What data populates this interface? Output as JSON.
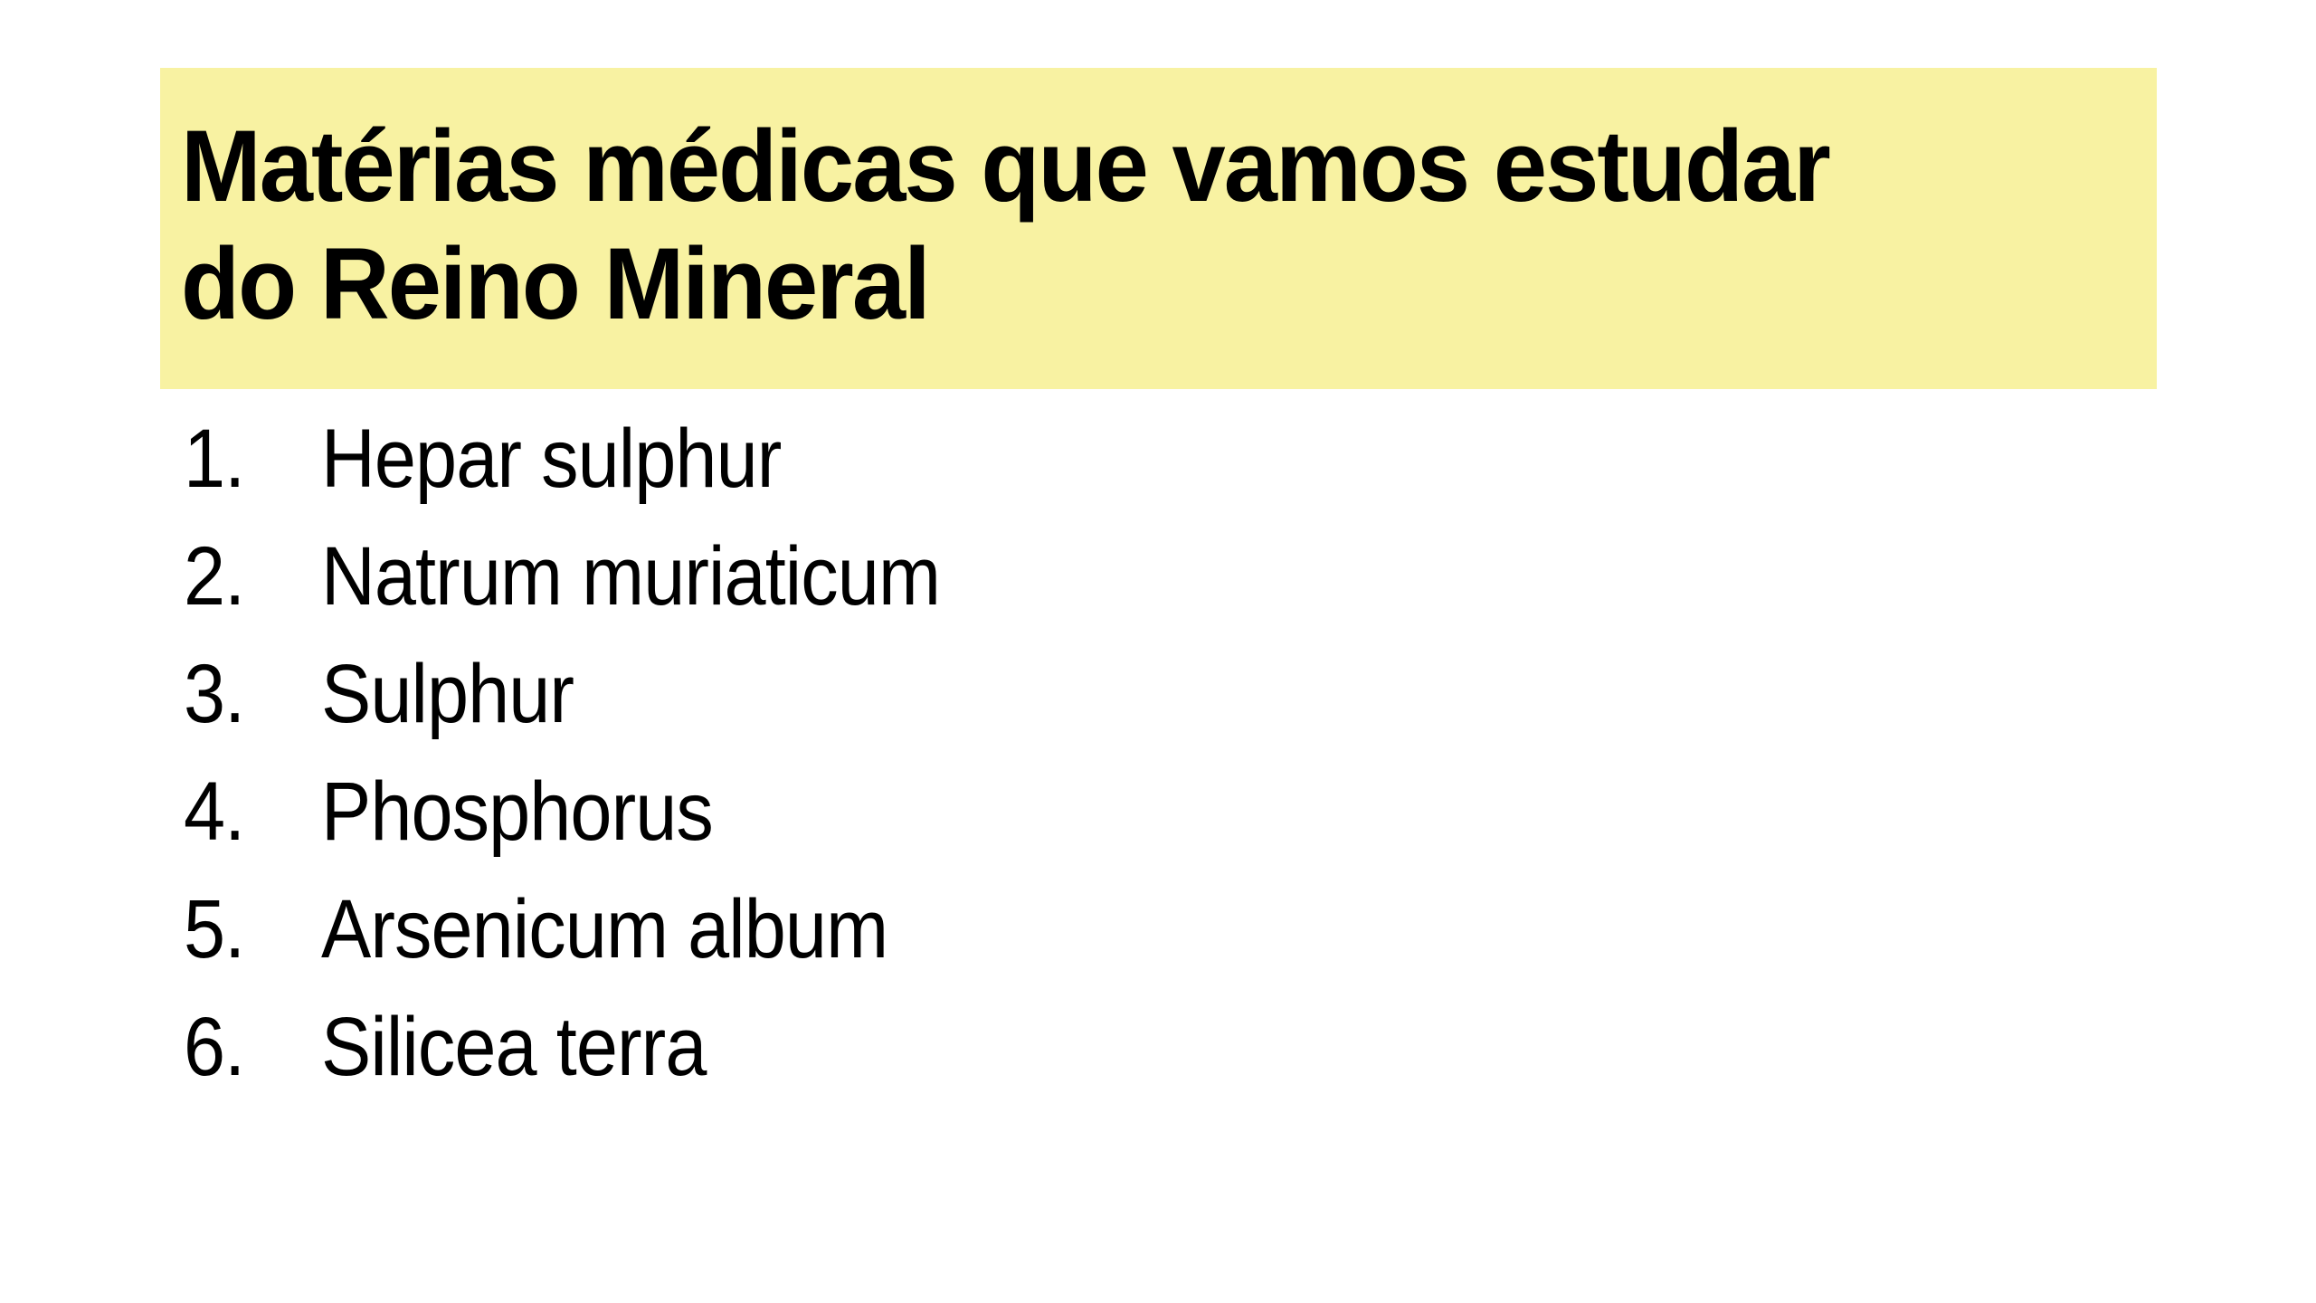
{
  "slide": {
    "background_color": "#ffffff",
    "text_color": "#000000"
  },
  "title": {
    "line1": "Matérias médicas que vamos estudar",
    "line2": "do Reino Mineral",
    "full_text": "Matérias médicas que vamos estudar do Reino Mineral",
    "highlight_color": "#f8f2a2",
    "text_color": "#000000"
  },
  "list": {
    "style": "decimal",
    "items": [
      {
        "number": "1.",
        "label": "Hepar sulphur"
      },
      {
        "number": "2.",
        "label": "Natrum muriaticum"
      },
      {
        "number": "3.",
        "label": "Sulphur"
      },
      {
        "number": "4.",
        "label": "Phosphorus"
      },
      {
        "number": "5.",
        "label": "Arsenicum album"
      },
      {
        "number": "6.",
        "label": "Silicea terra"
      }
    ]
  }
}
